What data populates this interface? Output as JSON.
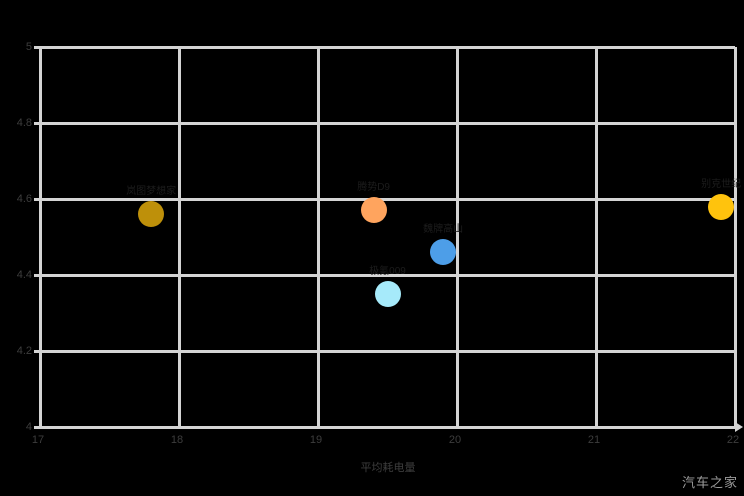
{
  "watermark": {
    "text": "汽车之家"
  },
  "chart_data": {
    "type": "scatter",
    "title": "",
    "xlabel": "平均耗电量",
    "ylabel": "",
    "xlim": [
      17,
      22
    ],
    "ylim": [
      4,
      5
    ],
    "xticks": [
      17,
      18,
      19,
      20,
      21,
      22
    ],
    "yticks": [
      4,
      4.2,
      4.4,
      4.6,
      4.8,
      5
    ],
    "grid": true,
    "legend_position": "none",
    "background_color": "#000000",
    "gridline_color": "#d4d4d4",
    "points": [
      {
        "label": "岚图梦想家",
        "x": 17.8,
        "y": 4.56,
        "color": "#be900a"
      },
      {
        "label": "腾势D9",
        "x": 19.4,
        "y": 4.57,
        "color": "#ffa45e"
      },
      {
        "label": "极氪009",
        "x": 19.5,
        "y": 4.35,
        "color": "#a6eafa"
      },
      {
        "label": "魏牌高山",
        "x": 19.9,
        "y": 4.46,
        "color": "#4d9ee8"
      },
      {
        "label": "别克世纪",
        "x": 21.9,
        "y": 4.58,
        "color": "#ffc30d"
      }
    ]
  }
}
